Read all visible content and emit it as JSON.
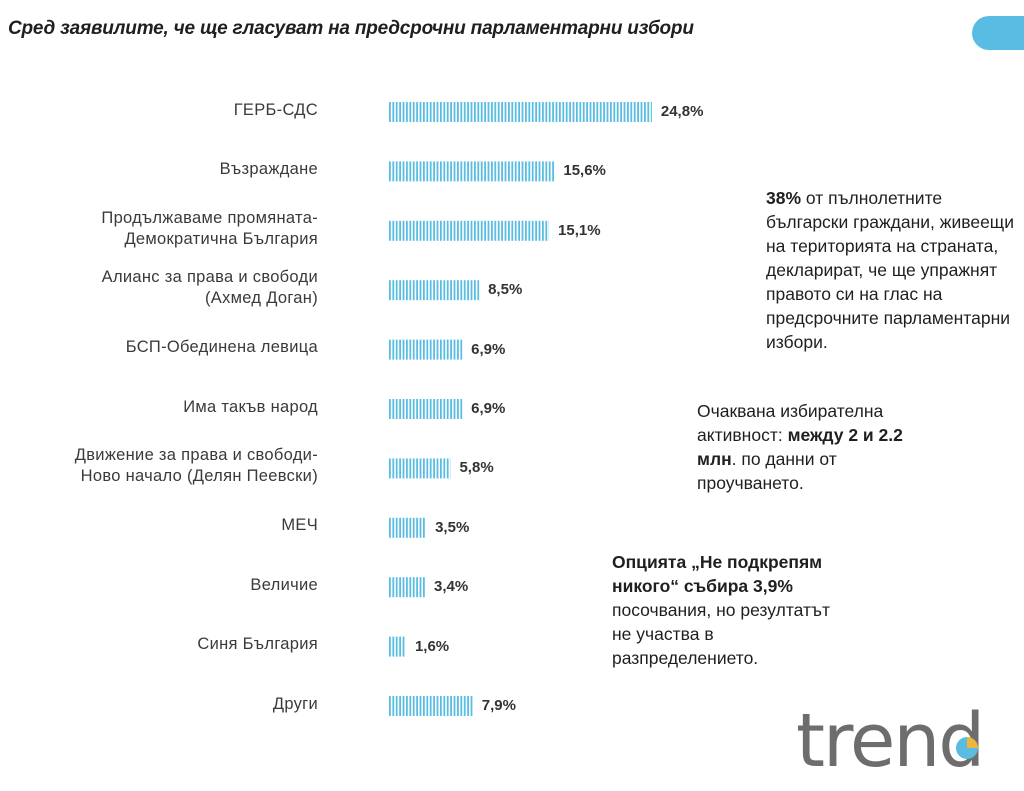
{
  "title": "Сред заявилите, че ще гласуват на предсрочни парламентарни избори",
  "chart_data": {
    "type": "bar",
    "orientation": "horizontal",
    "categories": [
      "ГЕРБ-СДС",
      "Възраждане",
      "Продължаваме промяната-Демократична България",
      "Алианс за права и свободи (Ахмед Доган)",
      "БСП-Обединена левица",
      "Има такъв народ",
      "Движение за права и свободи-Ново начало (Делян Пеевски)",
      "МЕЧ",
      "Величие",
      "Синя България",
      "Други"
    ],
    "label_lines": [
      [
        "ГЕРБ-СДС"
      ],
      [
        "Възраждане"
      ],
      [
        "Продължаваме промяната-",
        "Демократична България"
      ],
      [
        "Алианс за права и свободи",
        "(Ахмед Доган)"
      ],
      [
        "БСП-Обединена левица"
      ],
      [
        "Има такъв народ"
      ],
      [
        "Движение за права и свободи-",
        "Ново начало (Делян Пеевски)"
      ],
      [
        "МЕЧ"
      ],
      [
        "Величие"
      ],
      [
        "Синя България"
      ],
      [
        "Други"
      ]
    ],
    "values": [
      24.8,
      15.6,
      15.1,
      8.5,
      6.9,
      6.9,
      5.8,
      3.5,
      3.4,
      1.6,
      7.9
    ],
    "value_labels": [
      "24,8%",
      "15,6%",
      "15,1%",
      "8,5%",
      "6,9%",
      "6,9%",
      "5,8%",
      "3,5%",
      "3,4%",
      "1,6%",
      "7,9%"
    ],
    "unit": "%",
    "bar_color": "#59bde3",
    "bar_pattern": "vertical-stripes",
    "grid": false,
    "legend": "none"
  },
  "notes": [
    {
      "parts": [
        {
          "text": "38%",
          "bold": true
        },
        {
          "text": " от пълнолетните български граждани, живеещи на територията на страната, декларират, че ще упражнят правото си на глас на предсрочните парламентарни избори.",
          "bold": false
        }
      ]
    },
    {
      "parts": [
        {
          "text": "Очаквана избирателна активност: ",
          "bold": false
        },
        {
          "text": "между 2 и 2.2 млн",
          "bold": true
        },
        {
          "text": ". по данни от проучването.",
          "bold": false
        }
      ]
    },
    {
      "parts": [
        {
          "text": "Опцията „Не подкрепям никого“ събира 3,9%",
          "bold": true
        },
        {
          "text": " посочвания, но резултатът не участва в разпределението.",
          "bold": false
        }
      ]
    }
  ],
  "logo": {
    "text": "trend",
    "text_color": "#6d6d6d",
    "accent_colors": [
      "#59bde3",
      "#f2b43a"
    ]
  },
  "accent_color": "#59bde3"
}
